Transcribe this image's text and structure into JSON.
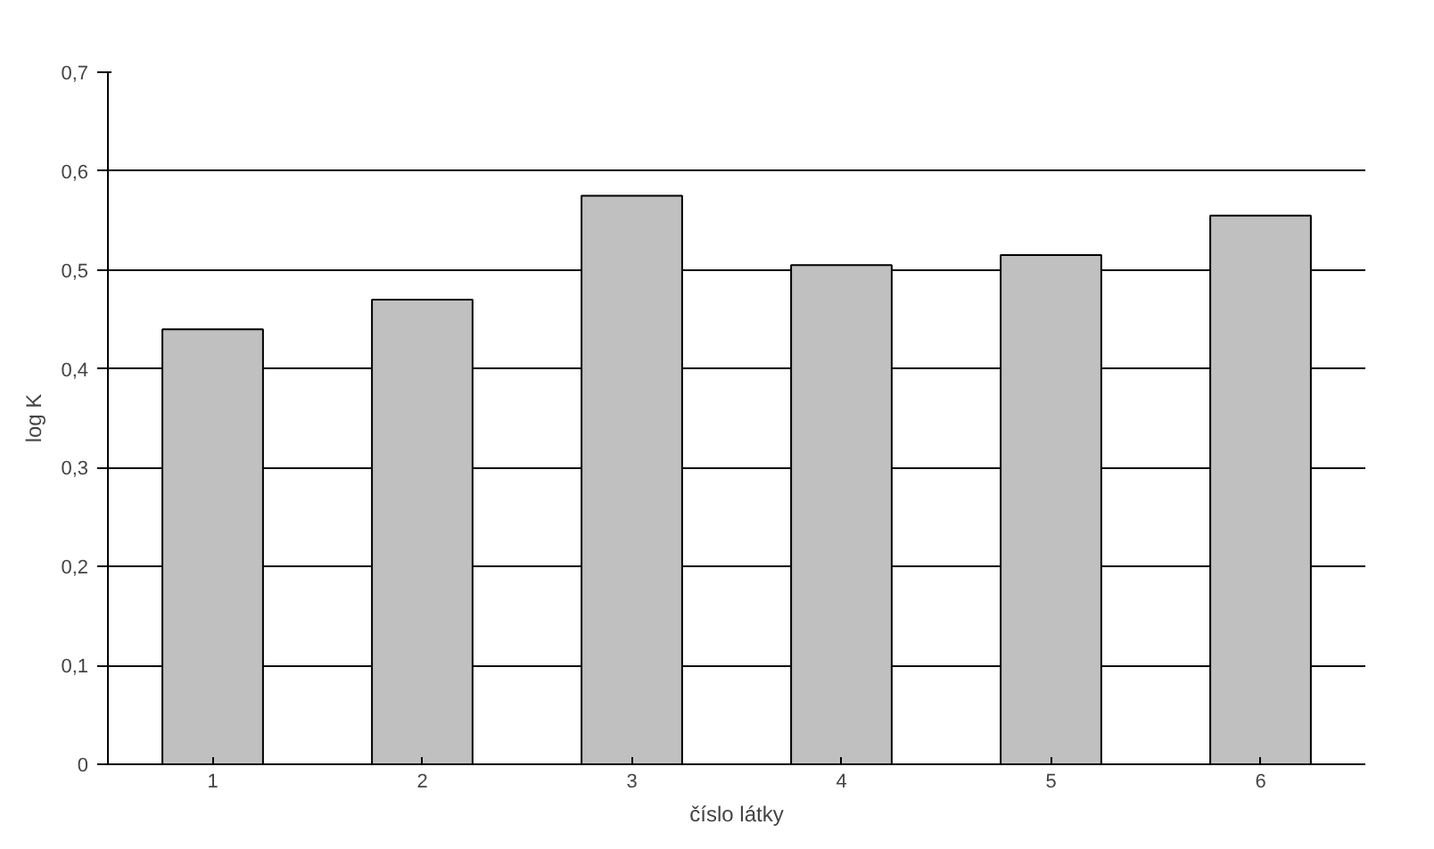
{
  "chart_data": {
    "type": "bar",
    "xlabel": "číslo látky",
    "ylabel": "log K",
    "categories": [
      "1",
      "2",
      "3",
      "4",
      "5",
      "6"
    ],
    "values": [
      0.44,
      0.47,
      0.575,
      0.505,
      0.515,
      0.555
    ],
    "color": "#c0c0c0",
    "ylim": [
      0,
      0.7
    ],
    "yticks": [
      0,
      {
        "value": 0.1,
        "label": "0,1"
      },
      {
        "value": 0.2,
        "label": "0,2"
      },
      {
        "value": 0.3,
        "label": "0,3"
      },
      {
        "value": 0.4,
        "label": "0,4"
      },
      {
        "value": 0.5,
        "label": "0,5"
      },
      {
        "value": 0.6,
        "label": "0,6"
      },
      {
        "value": 0.7,
        "label": "0,7"
      }
    ],
    "grid": "y"
  }
}
